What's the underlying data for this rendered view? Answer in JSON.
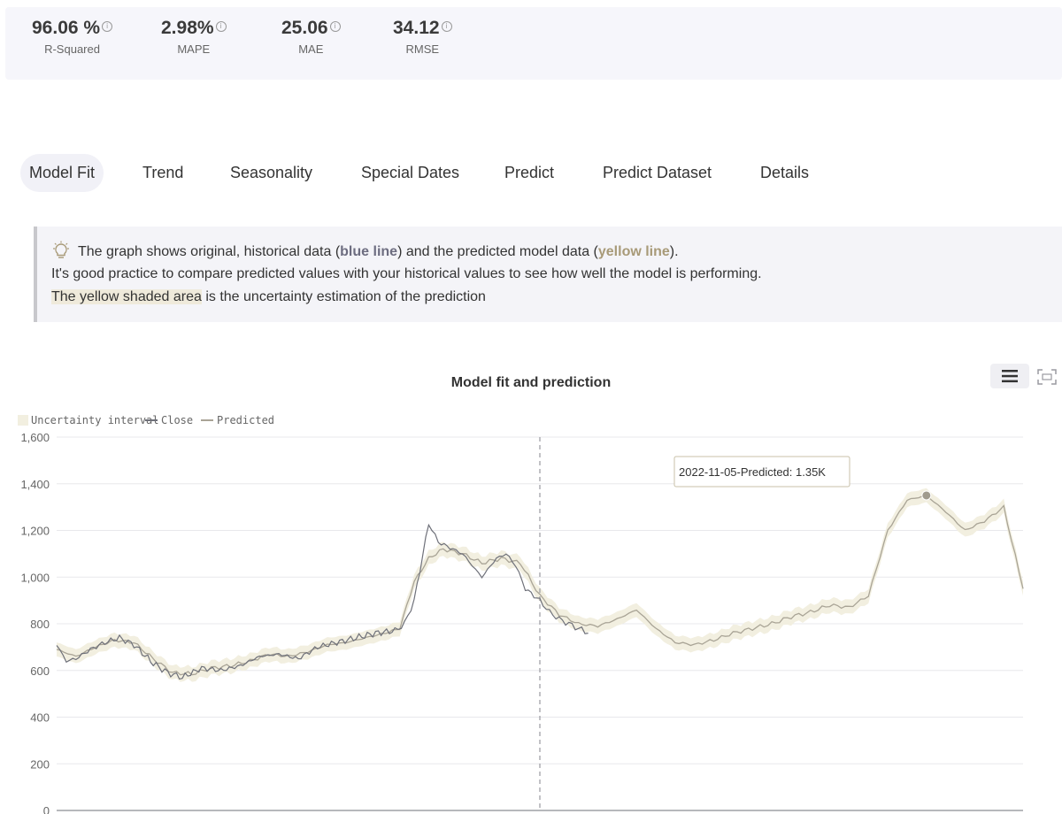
{
  "metrics": [
    {
      "value": "96.06 %",
      "label": "R-Squared"
    },
    {
      "value": "2.98%",
      "label": "MAPE"
    },
    {
      "value": "25.06",
      "label": "MAE"
    },
    {
      "value": "34.12",
      "label": "RMSE"
    }
  ],
  "tabs": [
    "Model Fit",
    "Trend",
    "Seasonality",
    "Special Dates",
    "Predict",
    "Predict Dataset",
    "Details"
  ],
  "info": {
    "line1_a": "The graph shows original, historical data (",
    "line1_b": "blue line",
    "line1_c": ") and the predicted model data (",
    "line1_d": "yellow line",
    "line1_e": ").",
    "line2": "It's good practice to compare predicted values with your historical values to see how well the model is performing.",
    "line3_a": "The yellow shaded area",
    "line3_b": " is the uncertainty estimation of the prediction"
  },
  "icons": {
    "info": "info-icon",
    "bulb": "lightbulb-icon",
    "menu": "menu-icon",
    "expand": "fullscreen-icon"
  },
  "colors": {
    "close": "#6e7079",
    "predicted": "#a9a496",
    "band": "#f2efe0",
    "accent_yellow": "#a89a78"
  },
  "chart_data": {
    "type": "line",
    "title": "Model fit and prediction",
    "legend": [
      "Uncertainty interval",
      "Close",
      "Predicted"
    ],
    "legend_position": "top-left",
    "ylim": [
      0,
      1600
    ],
    "yticks": [
      "0",
      "200",
      "400",
      "600",
      "800",
      "1,000",
      "1,200",
      "1,400",
      "1,600"
    ],
    "grid": true,
    "x": {
      "fit_end": 0.5,
      "prediction_end": 1.0
    },
    "close_points": [
      [
        0,
        710
      ],
      [
        0.01,
        640
      ],
      [
        0.02,
        650
      ],
      [
        0.035,
        690
      ],
      [
        0.05,
        720
      ],
      [
        0.065,
        740
      ],
      [
        0.08,
        710
      ],
      [
        0.1,
        630
      ],
      [
        0.115,
        590
      ],
      [
        0.13,
        570
      ],
      [
        0.15,
        610
      ],
      [
        0.17,
        600
      ],
      [
        0.19,
        620
      ],
      [
        0.21,
        660
      ],
      [
        0.23,
        670
      ],
      [
        0.25,
        650
      ],
      [
        0.27,
        700
      ],
      [
        0.29,
        720
      ],
      [
        0.31,
        740
      ],
      [
        0.33,
        760
      ],
      [
        0.35,
        770
      ],
      [
        0.36,
        800
      ],
      [
        0.37,
        900
      ],
      [
        0.385,
        1230
      ],
      [
        0.395,
        1150
      ],
      [
        0.41,
        1120
      ],
      [
        0.42,
        1100
      ],
      [
        0.43,
        1050
      ],
      [
        0.44,
        1000
      ],
      [
        0.455,
        1080
      ],
      [
        0.465,
        1100
      ],
      [
        0.475,
        1050
      ],
      [
        0.485,
        950
      ],
      [
        0.5,
        900
      ],
      [
        0.51,
        850
      ],
      [
        0.52,
        820
      ],
      [
        0.53,
        800
      ],
      [
        0.54,
        780
      ],
      [
        0.55,
        760
      ]
    ],
    "predicted_points": [
      [
        0,
        690
      ],
      [
        0.02,
        660
      ],
      [
        0.04,
        700
      ],
      [
        0.06,
        730
      ],
      [
        0.08,
        720
      ],
      [
        0.1,
        650
      ],
      [
        0.12,
        590
      ],
      [
        0.14,
        585
      ],
      [
        0.16,
        610
      ],
      [
        0.18,
        620
      ],
      [
        0.2,
        640
      ],
      [
        0.22,
        670
      ],
      [
        0.24,
        660
      ],
      [
        0.26,
        680
      ],
      [
        0.28,
        710
      ],
      [
        0.3,
        720
      ],
      [
        0.32,
        740
      ],
      [
        0.34,
        760
      ],
      [
        0.355,
        780
      ],
      [
        0.37,
        980
      ],
      [
        0.385,
        1080
      ],
      [
        0.4,
        1120
      ],
      [
        0.42,
        1100
      ],
      [
        0.44,
        1060
      ],
      [
        0.46,
        1080
      ],
      [
        0.48,
        1060
      ],
      [
        0.5,
        920
      ],
      [
        0.52,
        840
      ],
      [
        0.54,
        800
      ],
      [
        0.56,
        790
      ],
      [
        0.58,
        820
      ],
      [
        0.6,
        860
      ],
      [
        0.62,
        780
      ],
      [
        0.64,
        720
      ],
      [
        0.66,
        710
      ],
      [
        0.68,
        730
      ],
      [
        0.7,
        760
      ],
      [
        0.72,
        780
      ],
      [
        0.74,
        800
      ],
      [
        0.76,
        830
      ],
      [
        0.78,
        850
      ],
      [
        0.8,
        880
      ],
      [
        0.82,
        870
      ],
      [
        0.84,
        920
      ],
      [
        0.86,
        1200
      ],
      [
        0.88,
        1330
      ],
      [
        0.9,
        1350
      ],
      [
        0.92,
        1280
      ],
      [
        0.94,
        1200
      ],
      [
        0.96,
        1240
      ],
      [
        0.98,
        1300
      ],
      [
        1.0,
        950
      ]
    ],
    "band_width": 30,
    "tooltip": {
      "label": "2022-11-05-Predicted: 1.35K",
      "x": 0.9,
      "y": 1350
    }
  }
}
